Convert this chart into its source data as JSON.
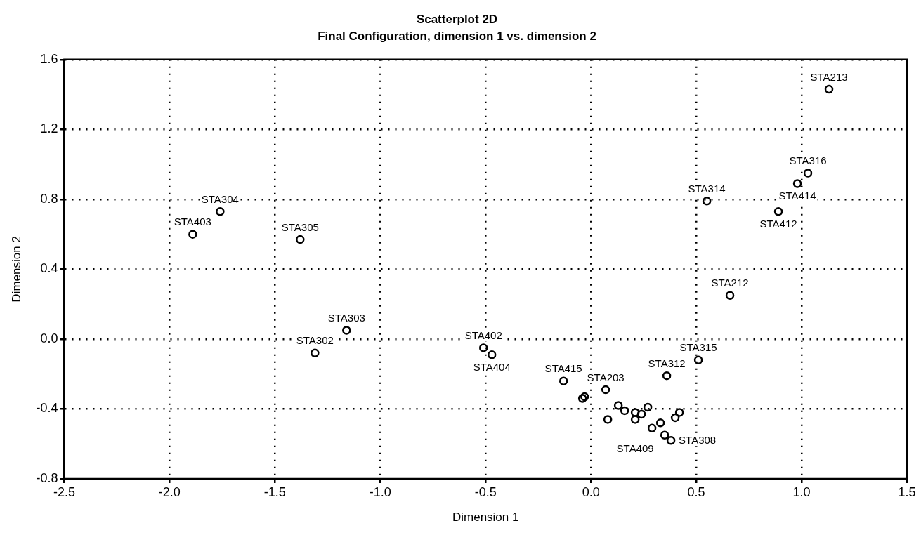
{
  "chart_data": {
    "type": "scatter",
    "title": "Scatterplot 2D",
    "subtitle": "Final Configuration, dimension 1 vs. dimension 2",
    "xlabel": "Dimension 1",
    "ylabel": "Dimension 2",
    "x": [
      1.13,
      1.03,
      0.98,
      0.89,
      0.55,
      0.66,
      0.51,
      0.36,
      -1.76,
      -1.89,
      -1.38,
      -1.16,
      -1.31,
      -0.51,
      -0.47,
      -0.13,
      -0.03,
      -0.04,
      0.08,
      0.07,
      0.16,
      0.21,
      0.24,
      0.29,
      0.33,
      0.35,
      0.38,
      0.42,
      0.4,
      0.27,
      0.13,
      0.21
    ],
    "values": [
      1.43,
      0.95,
      0.89,
      0.73,
      0.79,
      0.25,
      -0.12,
      -0.21,
      0.73,
      0.6,
      0.57,
      0.05,
      -0.08,
      -0.05,
      -0.09,
      -0.24,
      -0.33,
      -0.34,
      -0.46,
      -0.29,
      -0.41,
      -0.46,
      -0.43,
      -0.51,
      -0.48,
      -0.55,
      -0.58,
      -0.42,
      -0.45,
      -0.39,
      -0.38,
      -0.42
    ],
    "color": "#000000",
    "marker": "circle",
    "xlim": [
      -2.5,
      1.5
    ],
    "xticks": [
      -2.5,
      {
        "value": -2,
        "label": "-2.0"
      },
      -1.5,
      {
        "value": -1,
        "label": "-1.0"
      },
      -0.5,
      {
        "value": 0,
        "label": "0.0"
      },
      0.5,
      {
        "value": 1,
        "label": "1.0"
      },
      1.5
    ],
    "ylim": [
      -0.8,
      1.6
    ],
    "yticks": [
      -0.8,
      -0.4,
      {
        "value": 0,
        "label": "0.0"
      },
      0.4,
      0.8,
      1.2,
      1.6
    ],
    "grid": true,
    "annotations": [
      {
        "text": "STA213",
        "x": 1.13,
        "y": 1.43
      },
      {
        "text": "STA316",
        "x": 1.03,
        "y": 0.95
      },
      {
        "text": "STA414",
        "x": 0.98,
        "y": 0.89
      },
      {
        "text": "STA412",
        "x": 0.89,
        "y": 0.73
      },
      {
        "text": "STA314",
        "x": 0.55,
        "y": 0.79
      },
      {
        "text": "STA212",
        "x": 0.66,
        "y": 0.25
      },
      {
        "text": "STA315",
        "x": 0.51,
        "y": -0.12
      },
      {
        "text": "STA312",
        "x": 0.36,
        "y": -0.21
      },
      {
        "text": "STA304",
        "x": -1.76,
        "y": 0.73
      },
      {
        "text": "STA403",
        "x": -1.89,
        "y": 0.6
      },
      {
        "text": "STA305",
        "x": -1.38,
        "y": 0.57
      },
      {
        "text": "STA303",
        "x": -1.16,
        "y": 0.05
      },
      {
        "text": "STA302",
        "x": -1.31,
        "y": -0.08
      },
      {
        "text": "STA402",
        "x": -0.51,
        "y": -0.05
      },
      {
        "text": "STA404",
        "x": -0.47,
        "y": -0.09
      },
      {
        "text": "STA415",
        "x": -0.13,
        "y": -0.24
      },
      {
        "text": "STA203",
        "x": 0.07,
        "y": -0.29
      },
      {
        "text": "STA409",
        "x": 0.21,
        "y": -0.42
      },
      {
        "text": "STA308",
        "x": 0.38,
        "y": -0.58
      }
    ]
  }
}
